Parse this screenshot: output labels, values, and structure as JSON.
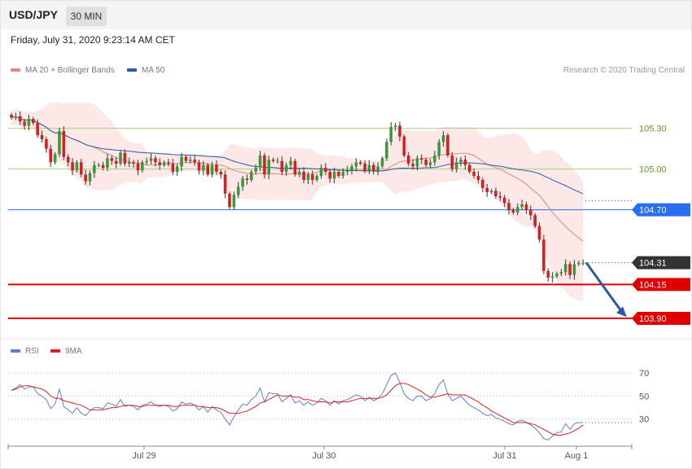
{
  "header": {
    "symbol": "USD/JPY",
    "timeframe": "30 MIN"
  },
  "timestamp": "Friday, July 31, 2020 9:23:14 AM CET",
  "legend": {
    "ma20": "MA 20 + Bollinger Bands",
    "ma50": "MA 50",
    "rsi": "RSI",
    "ma9": "9MA"
  },
  "credit": "Research © 2020 Trading Central",
  "colors": {
    "up": "#3a9a3a",
    "down": "#d42020",
    "band": "#fde4e4",
    "ma20": "#f08080",
    "ma50": "#2c5aa0",
    "resistance": "#a8d080",
    "pivot": "#2a6ef0",
    "support": "#e00000",
    "last": "#333333",
    "rsi": "#5b7fd9",
    "ma9": "#e02020"
  },
  "chart_data": [
    {
      "type": "candlestick",
      "title": "USD/JPY 30 MIN",
      "x_ticks": [
        "Jul 29",
        "Jul 30",
        "Jul 31",
        "Aug 1"
      ],
      "ylim": [
        103.75,
        105.55
      ],
      "levels": [
        {
          "label": "105.30",
          "value": 105.3,
          "kind": "resistance"
        },
        {
          "label": "105.00",
          "value": 105.0,
          "kind": "resistance"
        },
        {
          "label": "104.70",
          "value": 104.7,
          "kind": "pivot"
        },
        {
          "label": "104.31",
          "value": 104.31,
          "kind": "last"
        },
        {
          "label": "104.15",
          "value": 104.15,
          "kind": "support"
        },
        {
          "label": "103.90",
          "value": 103.9,
          "kind": "support"
        }
      ],
      "close": [
        105.38,
        105.39,
        105.35,
        105.32,
        105.37,
        105.34,
        105.25,
        105.22,
        105.15,
        105.05,
        105.11,
        105.28,
        105.09,
        105.05,
        104.99,
        105.05,
        104.96,
        104.91,
        104.97,
        105.03,
        105.03,
        105.01,
        105.08,
        105.06,
        105.04,
        105.12,
        105.04,
        105.05,
        105.04,
        104.99,
        105.05,
        105.06,
        105.08,
        105.05,
        105.03,
        105.05,
        105.04,
        104.98,
        105.02,
        105.09,
        105.06,
        105.07,
        105.05,
        104.99,
        105.03,
        104.96,
        105.03,
        104.98,
        104.96,
        104.82,
        104.72,
        104.81,
        104.87,
        104.93,
        104.92,
        104.98,
        105.01,
        105.1,
        104.96,
        105.07,
        105.06,
        105.06,
        104.98,
        105.03,
        105.06,
        104.96,
        104.98,
        104.92,
        104.96,
        104.92,
        104.95,
        105.01,
        104.98,
        104.93,
        104.98,
        104.95,
        104.98,
        104.99,
        105.02,
        105.05,
        105.04,
        104.99,
        105.03,
        104.99,
        105.02,
        105.08,
        105.2,
        105.31,
        105.32,
        105.24,
        105.1,
        105.04,
        105.02,
        105.08,
        105.07,
        105.03,
        105.05,
        105.1,
        105.2,
        105.25,
        105.1,
        105.0,
        105.05,
        105.07,
        105.03,
        104.98,
        104.95,
        104.92,
        104.86,
        104.83,
        104.84,
        104.8,
        104.79,
        104.75,
        104.7,
        104.68,
        104.72,
        104.74,
        104.7,
        104.66,
        104.58,
        104.48,
        104.25,
        104.2,
        104.21,
        104.23,
        104.24,
        104.3,
        104.22,
        104.3,
        104.31,
        104.31
      ],
      "rsi": {
        "range": [
          10,
          80
        ],
        "ticks": [
          30,
          50,
          70
        ],
        "values": [
          55,
          57,
          60,
          56,
          58,
          58,
          52,
          50,
          47,
          39,
          43,
          56,
          41,
          38,
          35,
          40,
          35,
          33,
          37,
          40,
          40,
          39,
          44,
          43,
          41,
          47,
          41,
          42,
          41,
          38,
          42,
          43,
          45,
          42,
          41,
          42,
          41,
          37,
          39,
          45,
          43,
          44,
          42,
          38,
          41,
          36,
          41,
          38,
          36,
          30,
          25,
          32,
          38,
          43,
          42,
          47,
          50,
          57,
          45,
          53,
          52,
          52,
          45,
          48,
          51,
          44,
          46,
          42,
          45,
          42,
          44,
          48,
          46,
          42,
          46,
          43,
          46,
          47,
          49,
          51,
          50,
          46,
          49,
          46,
          48,
          52,
          60,
          68,
          70,
          62,
          52,
          48,
          46,
          50,
          50,
          46,
          48,
          52,
          60,
          64,
          52,
          46,
          48,
          50,
          46,
          42,
          40,
          38,
          35,
          33,
          34,
          31,
          30,
          28,
          26,
          25,
          28,
          29,
          27,
          25,
          22,
          18,
          13,
          12,
          15,
          18,
          19,
          26,
          21,
          26,
          27,
          27
        ],
        "ma9": [
          55,
          56,
          58,
          59,
          59,
          58,
          57,
          56,
          54,
          50,
          48,
          48,
          46,
          45,
          44,
          43,
          42,
          40,
          38,
          38,
          38,
          38,
          39,
          40,
          40,
          41,
          42,
          42,
          42,
          41,
          41,
          42,
          42,
          42,
          42,
          42,
          42,
          41,
          41,
          42,
          42,
          42,
          42,
          41,
          41,
          40,
          40,
          40,
          39,
          37,
          35,
          35,
          35,
          36,
          37,
          39,
          41,
          44,
          45,
          47,
          49,
          51,
          50,
          50,
          50,
          49,
          49,
          47,
          47,
          46,
          45,
          45,
          45,
          44,
          45,
          45,
          45,
          45,
          46,
          47,
          48,
          48,
          48,
          48,
          48,
          49,
          51,
          55,
          59,
          61,
          61,
          60,
          58,
          56,
          54,
          51,
          49,
          49,
          50,
          51,
          52,
          51,
          51,
          51,
          51,
          49,
          47,
          45,
          42,
          40,
          37,
          35,
          33,
          31,
          29,
          27,
          27,
          27,
          27,
          26,
          25,
          23,
          21,
          19,
          17,
          16,
          16,
          17,
          18,
          20,
          22,
          25
        ]
      }
    }
  ]
}
